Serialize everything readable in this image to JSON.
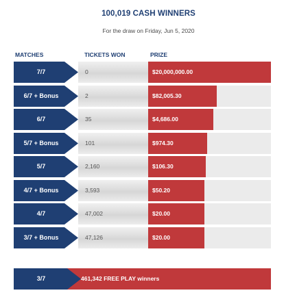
{
  "header": {
    "title": "100,019 CASH WINNERS",
    "subtitle": "For the draw on Friday, Jun 5, 2020"
  },
  "columns": {
    "matches": "MATCHES",
    "tickets": "TICKETS WON",
    "prize": "PRIZE"
  },
  "colors": {
    "navy": "#1f3f73",
    "red": "#c0393b",
    "gray": "#ebebeb"
  },
  "prize_scale_max": 20000000,
  "rows": [
    {
      "match": "7/7",
      "tickets": "0",
      "prize": "$20,000,000.00",
      "bar_fraction": 1.0
    },
    {
      "match": "6/7 + Bonus",
      "tickets": "2",
      "prize": "$82,005.30",
      "bar_fraction": 0.56
    },
    {
      "match": "6/7",
      "tickets": "35",
      "prize": "$4,686.00",
      "bar_fraction": 0.53
    },
    {
      "match": "5/7 + Bonus",
      "tickets": "101",
      "prize": "$974.30",
      "bar_fraction": 0.48
    },
    {
      "match": "5/7",
      "tickets": "2,160",
      "prize": "$106.30",
      "bar_fraction": 0.47
    },
    {
      "match": "4/7 + Bonus",
      "tickets": "3,593",
      "prize": "$50.20",
      "bar_fraction": 0.46
    },
    {
      "match": "4/7",
      "tickets": "47,002",
      "prize": "$20.00",
      "bar_fraction": 0.46
    },
    {
      "match": "3/7 + Bonus",
      "tickets": "47,126",
      "prize": "$20.00",
      "bar_fraction": 0.46
    }
  ],
  "free_play": {
    "match": "3/7",
    "text": "461,342 FREE PLAY winners"
  }
}
